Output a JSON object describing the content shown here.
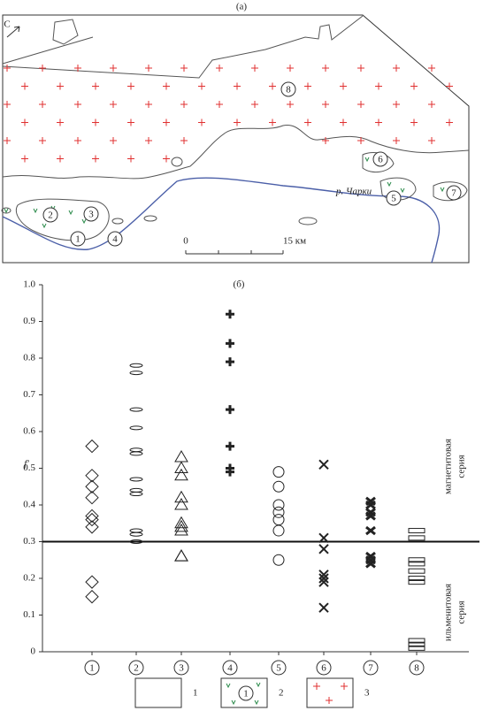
{
  "map": {
    "title": "(а)",
    "north": "С",
    "bodies": [
      "8",
      "6",
      "5",
      "7",
      "2",
      "3",
      "1",
      "4"
    ],
    "river": "р. Чарки",
    "scale": [
      "0",
      "15 км"
    ]
  },
  "chart_data": {
    "type": "strip",
    "title": "(б)",
    "y_label": "f'",
    "categories": [
      "1",
      "2",
      "3",
      "4",
      "5",
      "6",
      "7",
      "8"
    ],
    "markers": [
      "diamond",
      "oval",
      "triangle",
      "bold-plus",
      "circle",
      "cross",
      "bold-cross",
      "rect"
    ],
    "values": [
      [
        0.56,
        0.48,
        0.45,
        0.42,
        0.37,
        0.36,
        0.34,
        0.19,
        0.15
      ],
      [
        0.78,
        0.76,
        0.66,
        0.61,
        0.55,
        0.54,
        0.47,
        0.44,
        0.43,
        0.33,
        0.32,
        0.3
      ],
      [
        0.53,
        0.5,
        0.48,
        0.42,
        0.4,
        0.35,
        0.34,
        0.33,
        0.26,
        0.26
      ],
      [
        0.92,
        0.84,
        0.79,
        0.66,
        0.56,
        0.5,
        0.49
      ],
      [
        0.49,
        0.45,
        0.4,
        0.38,
        0.36,
        0.33,
        0.25
      ],
      [
        0.51,
        0.31,
        0.28,
        0.21,
        0.2,
        0.19,
        0.12
      ],
      [
        0.41,
        0.4,
        0.38,
        0.37,
        0.33,
        0.26,
        0.25,
        0.24
      ],
      [
        0.33,
        0.31,
        0.25,
        0.24,
        0.22,
        0.2,
        0.19,
        0.03,
        0.02,
        0.01
      ]
    ],
    "ylim": [
      0,
      1.0
    ],
    "yticks": [
      0,
      0.1,
      0.2,
      0.3,
      0.4,
      0.5,
      0.6,
      0.7,
      0.8,
      0.9,
      {
        "value": 1.0,
        "label": "1.0"
      }
    ],
    "threshold": 0.3,
    "series_labels": [
      [
        "магнетитовая",
        "серия"
      ],
      [
        "ильменитовая",
        "серия"
      ]
    ],
    "color": "#222222"
  },
  "legend": {
    "items": [
      "1",
      "2",
      "3"
    ],
    "inner_label": "1"
  }
}
